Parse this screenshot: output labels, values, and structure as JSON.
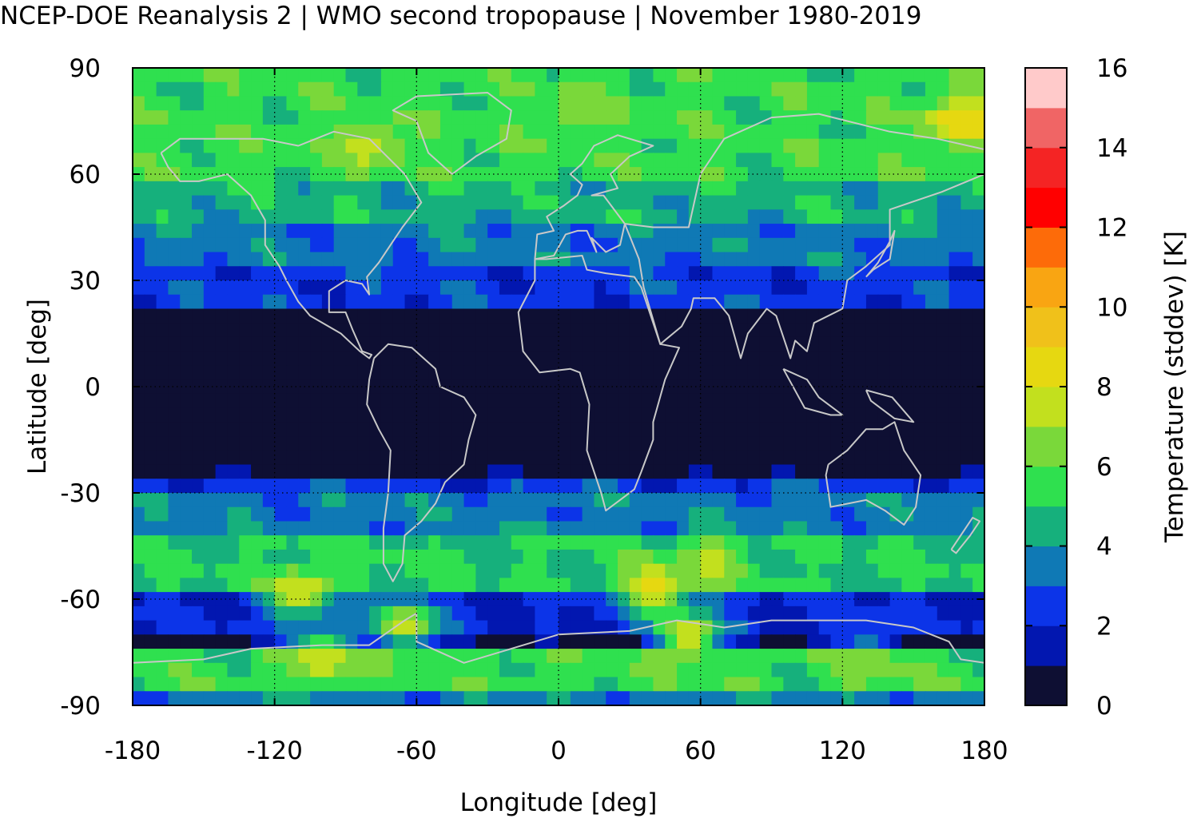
{
  "chart_data": {
    "type": "heatmap",
    "title": "NCEP-DOE Reanalysis 2 | WMO second tropopause | November 1980-2019",
    "xlabel": "Longitude [deg]",
    "ylabel": "Latitude [deg]",
    "xlim": [
      -180,
      180
    ],
    "ylim": [
      -90,
      90
    ],
    "x_ticks": [
      "-180",
      "-120",
      "-60",
      "0",
      "60",
      "120",
      "180"
    ],
    "y_ticks": [
      "90",
      "60",
      "30",
      "0",
      "-30",
      "-60",
      "-90"
    ],
    "grid": "dotted lines at every tick",
    "colorbar": {
      "label": "Temperature (stddev) [K]",
      "range": [
        0,
        16
      ],
      "ticks": [
        "0",
        "2",
        "4",
        "6",
        "8",
        "10",
        "12",
        "14",
        "16"
      ],
      "levels": [
        "#0e0f33",
        "#0217b0",
        "#0c34e8",
        "#0f79b5",
        "#16b07c",
        "#2fe04f",
        "#7ad83a",
        "#c2e01e",
        "#e6d811",
        "#f0c11a",
        "#f9a512",
        "#fd6b09",
        "#ff0000",
        "#f42424",
        "#f06565",
        "#ffcaca"
      ]
    },
    "latitude_bands": [
      {
        "lat_min": 60,
        "lat_max": 90,
        "value": 5.5
      },
      {
        "lat_min": 48,
        "lat_max": 60,
        "value": 4.5
      },
      {
        "lat_min": 35,
        "lat_max": 48,
        "value": 3.5
      },
      {
        "lat_min": 24,
        "lat_max": 35,
        "value": 2.5
      },
      {
        "lat_min": -24,
        "lat_max": 24,
        "value": 0.5
      },
      {
        "lat_min": -30,
        "lat_max": -24,
        "value": 2.5
      },
      {
        "lat_min": -40,
        "lat_max": -30,
        "value": 3.5
      },
      {
        "lat_min": -56,
        "lat_max": -40,
        "value": 5.0
      },
      {
        "lat_min": -68,
        "lat_max": -56,
        "value": 2.0
      },
      {
        "lat_min": -75,
        "lat_max": -68,
        "value": 0.5
      },
      {
        "lat_min": -85,
        "lat_max": -75,
        "value": 5.5
      },
      {
        "lat_min": -90,
        "lat_max": -85,
        "value": 3.5
      }
    ],
    "hotspots": [
      {
        "lon": -80,
        "lat": 68,
        "value": 7.5
      },
      {
        "lon": 170,
        "lat": 75,
        "value": 9.0
      },
      {
        "lon": 10,
        "lat": 78,
        "value": 7.0
      },
      {
        "lon": -65,
        "lat": -67,
        "value": 8.0
      },
      {
        "lon": -110,
        "lat": -58,
        "value": 8.0
      },
      {
        "lon": 40,
        "lat": -57,
        "value": 8.5
      },
      {
        "lon": 65,
        "lat": -50,
        "value": 7.5
      },
      {
        "lon": 55,
        "lat": -70,
        "value": 8.0
      },
      {
        "lon": -100,
        "lat": -76,
        "value": 8.0
      },
      {
        "lon": 130,
        "lat": -78,
        "value": 7.0
      }
    ]
  }
}
